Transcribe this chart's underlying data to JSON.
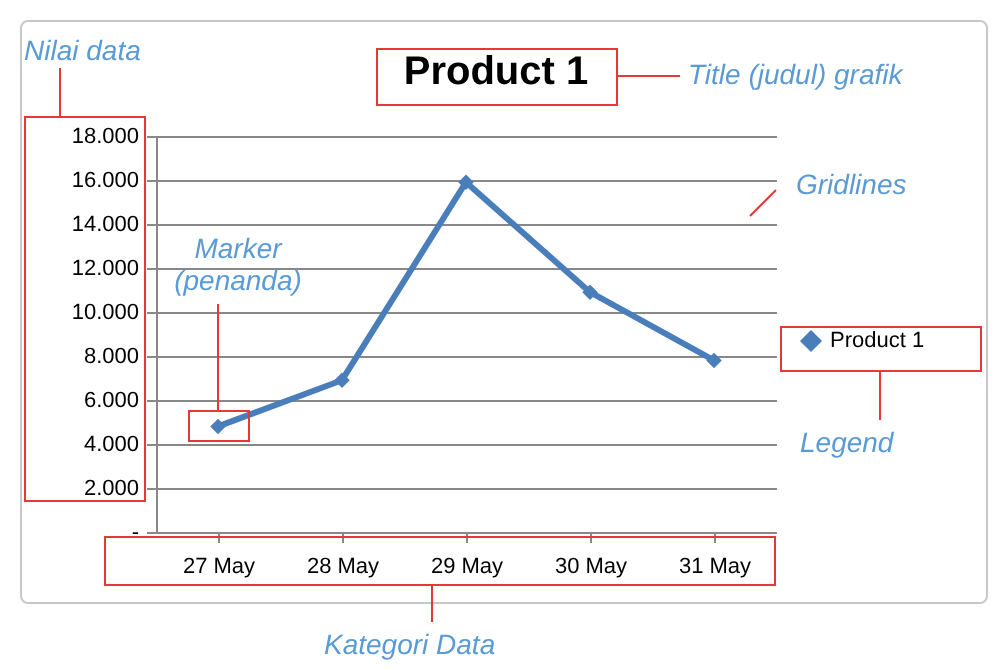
{
  "chart_data": {
    "type": "line",
    "title": "Product 1",
    "categories": [
      "27 May",
      "28 May",
      "29 May",
      "30 May",
      "31 May"
    ],
    "series": [
      {
        "name": "Product 1",
        "color": "#4a7ebb",
        "values": [
          4800,
          6900,
          15900,
          10900,
          7800
        ]
      }
    ],
    "ylim": [
      0,
      18000
    ],
    "yticks": [
      {
        "value": 0,
        "label": "-"
      },
      {
        "value": 2000,
        "label": "2.000"
      },
      {
        "value": 4000,
        "label": "4.000"
      },
      {
        "value": 6000,
        "label": "6.000"
      },
      {
        "value": 8000,
        "label": "8.000"
      },
      {
        "value": 10000,
        "label": "10.000"
      },
      {
        "value": 12000,
        "label": "12.000"
      },
      {
        "value": 14000,
        "label": "14.000"
      },
      {
        "value": 16000,
        "label": "16.000"
      },
      {
        "value": 18000,
        "label": "18.000"
      }
    ],
    "grid": "y",
    "legend": "right",
    "marker": "diamond",
    "line_style": "solid",
    "annotations": [
      "Nilai data",
      "Title (judul) grafik",
      "Gridlines",
      "Marker (penanda)",
      "Legend",
      "Kategori Data"
    ]
  }
}
